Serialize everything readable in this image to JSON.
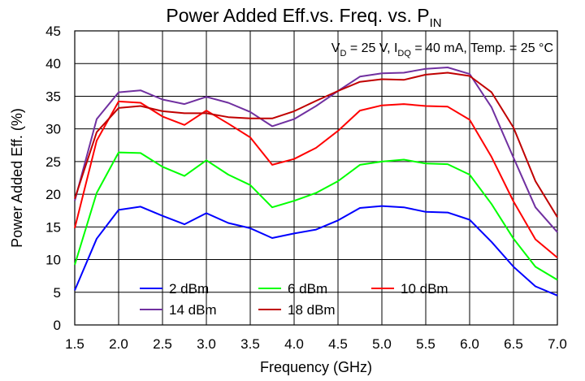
{
  "chart_data": {
    "type": "line",
    "title": "Power Added Eff.vs. Freq. vs. P",
    "title_sub": "IN",
    "xlabel": "Frequency (GHz)",
    "ylabel": "Power Added Eff. (%)",
    "annotation": {
      "p1": "V",
      "s1": "D",
      "p2": " = 25 V, I",
      "s2": "DQ",
      "p3": " = 40 mA, Temp. = 25 °C"
    },
    "xlim": [
      1.5,
      7.0
    ],
    "ylim": [
      0,
      45
    ],
    "xticks": [
      "1.5",
      "2.0",
      "2.5",
      "3.0",
      "3.5",
      "4.0",
      "4.5",
      "5.0",
      "5.5",
      "6.0",
      "6.5",
      "7.0"
    ],
    "yticks": [
      "0",
      "5",
      "10",
      "15",
      "20",
      "25",
      "30",
      "35",
      "40",
      "45"
    ],
    "grid": true,
    "legend_position": "bottom-center",
    "x": [
      1.5,
      1.75,
      2.0,
      2.25,
      2.5,
      2.75,
      3.0,
      3.25,
      3.5,
      3.75,
      4.0,
      4.25,
      4.5,
      4.75,
      5.0,
      5.25,
      5.5,
      5.75,
      6.0,
      6.25,
      6.5,
      6.75,
      7.0
    ],
    "series": [
      {
        "name": "2 dBm",
        "color": "#0000ff",
        "values": [
          5.3,
          13.2,
          17.6,
          18.1,
          16.7,
          15.4,
          17.1,
          15.6,
          14.8,
          13.3,
          14.0,
          14.6,
          16.0,
          17.9,
          18.2,
          18.0,
          17.3,
          17.2,
          16.1,
          12.7,
          8.9,
          5.9,
          4.5
        ]
      },
      {
        "name": "6 dBm",
        "color": "#00ff00",
        "values": [
          9.2,
          20.2,
          26.4,
          26.3,
          24.2,
          22.8,
          25.2,
          23.0,
          21.4,
          18.0,
          19.0,
          20.2,
          22.0,
          24.5,
          25.0,
          25.3,
          24.7,
          24.6,
          23.0,
          18.5,
          13.2,
          8.9,
          6.9
        ]
      },
      {
        "name": "10 dBm",
        "color": "#ff0000",
        "values": [
          14.8,
          28.2,
          34.2,
          34.0,
          31.9,
          30.6,
          32.8,
          30.8,
          28.7,
          24.5,
          25.4,
          27.1,
          29.7,
          32.8,
          33.6,
          33.8,
          33.5,
          33.4,
          31.4,
          25.7,
          18.9,
          13.1,
          10.3
        ]
      },
      {
        "name": "14 dBm",
        "color": "#7030a0",
        "values": [
          19.0,
          31.5,
          35.6,
          35.9,
          34.5,
          33.8,
          34.9,
          34.0,
          32.6,
          30.4,
          31.5,
          33.5,
          35.8,
          38.0,
          38.5,
          38.6,
          39.2,
          39.4,
          38.4,
          33.3,
          25.6,
          18.0,
          14.2
        ]
      },
      {
        "name": "18 dBm",
        "color": "#c00000",
        "values": [
          19.3,
          29.5,
          33.2,
          33.5,
          32.7,
          32.4,
          32.4,
          31.8,
          31.6,
          31.6,
          32.7,
          34.3,
          35.8,
          37.2,
          37.6,
          37.5,
          38.3,
          38.6,
          38.1,
          35.6,
          30.2,
          22.0,
          16.5
        ]
      }
    ]
  }
}
